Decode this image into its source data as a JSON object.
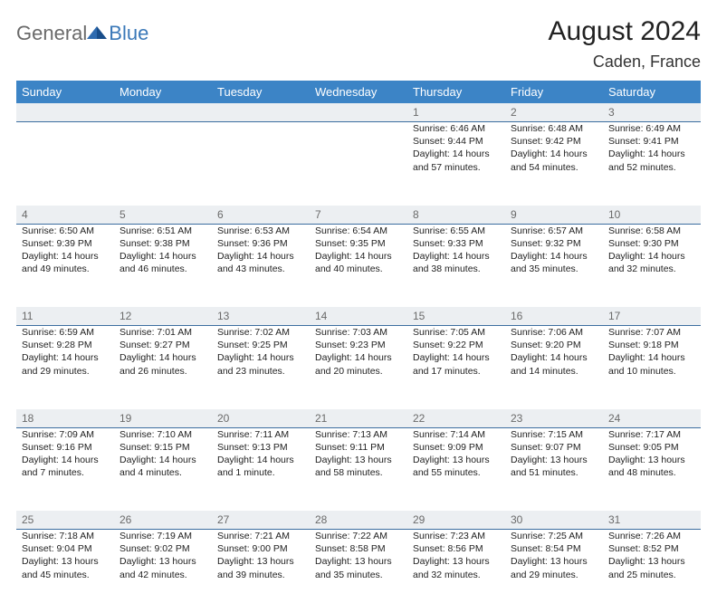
{
  "logo": {
    "text_a": "General",
    "text_b": "Blue"
  },
  "title": "August 2024",
  "location": "Caden, France",
  "colors": {
    "header_bg": "#3c84c6",
    "header_fg": "#ffffff",
    "rule": "#3c6ea0",
    "daynum_bg": "#eceff2",
    "daynum_fg": "#6a6a6a",
    "logo_gray": "#6a6a6a",
    "logo_blue": "#3a78b8"
  },
  "day_headers": [
    "Sunday",
    "Monday",
    "Tuesday",
    "Wednesday",
    "Thursday",
    "Friday",
    "Saturday"
  ],
  "weeks": [
    {
      "nums": [
        "",
        "",
        "",
        "",
        "1",
        "2",
        "3"
      ],
      "cells": [
        null,
        null,
        null,
        null,
        {
          "sunrise": "6:46 AM",
          "sunset": "9:44 PM",
          "daylight": "14 hours and 57 minutes."
        },
        {
          "sunrise": "6:48 AM",
          "sunset": "9:42 PM",
          "daylight": "14 hours and 54 minutes."
        },
        {
          "sunrise": "6:49 AM",
          "sunset": "9:41 PM",
          "daylight": "14 hours and 52 minutes."
        }
      ]
    },
    {
      "nums": [
        "4",
        "5",
        "6",
        "7",
        "8",
        "9",
        "10"
      ],
      "cells": [
        {
          "sunrise": "6:50 AM",
          "sunset": "9:39 PM",
          "daylight": "14 hours and 49 minutes."
        },
        {
          "sunrise": "6:51 AM",
          "sunset": "9:38 PM",
          "daylight": "14 hours and 46 minutes."
        },
        {
          "sunrise": "6:53 AM",
          "sunset": "9:36 PM",
          "daylight": "14 hours and 43 minutes."
        },
        {
          "sunrise": "6:54 AM",
          "sunset": "9:35 PM",
          "daylight": "14 hours and 40 minutes."
        },
        {
          "sunrise": "6:55 AM",
          "sunset": "9:33 PM",
          "daylight": "14 hours and 38 minutes."
        },
        {
          "sunrise": "6:57 AM",
          "sunset": "9:32 PM",
          "daylight": "14 hours and 35 minutes."
        },
        {
          "sunrise": "6:58 AM",
          "sunset": "9:30 PM",
          "daylight": "14 hours and 32 minutes."
        }
      ]
    },
    {
      "nums": [
        "11",
        "12",
        "13",
        "14",
        "15",
        "16",
        "17"
      ],
      "cells": [
        {
          "sunrise": "6:59 AM",
          "sunset": "9:28 PM",
          "daylight": "14 hours and 29 minutes."
        },
        {
          "sunrise": "7:01 AM",
          "sunset": "9:27 PM",
          "daylight": "14 hours and 26 minutes."
        },
        {
          "sunrise": "7:02 AM",
          "sunset": "9:25 PM",
          "daylight": "14 hours and 23 minutes."
        },
        {
          "sunrise": "7:03 AM",
          "sunset": "9:23 PM",
          "daylight": "14 hours and 20 minutes."
        },
        {
          "sunrise": "7:05 AM",
          "sunset": "9:22 PM",
          "daylight": "14 hours and 17 minutes."
        },
        {
          "sunrise": "7:06 AM",
          "sunset": "9:20 PM",
          "daylight": "14 hours and 14 minutes."
        },
        {
          "sunrise": "7:07 AM",
          "sunset": "9:18 PM",
          "daylight": "14 hours and 10 minutes."
        }
      ]
    },
    {
      "nums": [
        "18",
        "19",
        "20",
        "21",
        "22",
        "23",
        "24"
      ],
      "cells": [
        {
          "sunrise": "7:09 AM",
          "sunset": "9:16 PM",
          "daylight": "14 hours and 7 minutes."
        },
        {
          "sunrise": "7:10 AM",
          "sunset": "9:15 PM",
          "daylight": "14 hours and 4 minutes."
        },
        {
          "sunrise": "7:11 AM",
          "sunset": "9:13 PM",
          "daylight": "14 hours and 1 minute."
        },
        {
          "sunrise": "7:13 AM",
          "sunset": "9:11 PM",
          "daylight": "13 hours and 58 minutes."
        },
        {
          "sunrise": "7:14 AM",
          "sunset": "9:09 PM",
          "daylight": "13 hours and 55 minutes."
        },
        {
          "sunrise": "7:15 AM",
          "sunset": "9:07 PM",
          "daylight": "13 hours and 51 minutes."
        },
        {
          "sunrise": "7:17 AM",
          "sunset": "9:05 PM",
          "daylight": "13 hours and 48 minutes."
        }
      ]
    },
    {
      "nums": [
        "25",
        "26",
        "27",
        "28",
        "29",
        "30",
        "31"
      ],
      "cells": [
        {
          "sunrise": "7:18 AM",
          "sunset": "9:04 PM",
          "daylight": "13 hours and 45 minutes."
        },
        {
          "sunrise": "7:19 AM",
          "sunset": "9:02 PM",
          "daylight": "13 hours and 42 minutes."
        },
        {
          "sunrise": "7:21 AM",
          "sunset": "9:00 PM",
          "daylight": "13 hours and 39 minutes."
        },
        {
          "sunrise": "7:22 AM",
          "sunset": "8:58 PM",
          "daylight": "13 hours and 35 minutes."
        },
        {
          "sunrise": "7:23 AM",
          "sunset": "8:56 PM",
          "daylight": "13 hours and 32 minutes."
        },
        {
          "sunrise": "7:25 AM",
          "sunset": "8:54 PM",
          "daylight": "13 hours and 29 minutes."
        },
        {
          "sunrise": "7:26 AM",
          "sunset": "8:52 PM",
          "daylight": "13 hours and 25 minutes."
        }
      ]
    }
  ],
  "labels": {
    "sunrise": "Sunrise: ",
    "sunset": "Sunset: ",
    "daylight": "Daylight: "
  }
}
